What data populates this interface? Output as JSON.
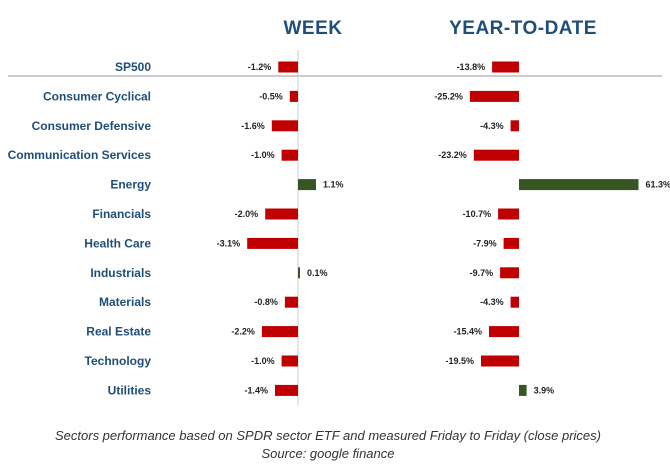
{
  "chart_data": {
    "type": "bar",
    "orientation": "horizontal",
    "categories": [
      "SP500",
      "Consumer Cyclical",
      "Consumer Defensive",
      "Communication Services",
      "Energy",
      "Financials",
      "Health Care",
      "Industrials",
      "Materials",
      "Real Estate",
      "Technology",
      "Utilities"
    ],
    "series": [
      {
        "name": "WEEK",
        "values": [
          -1.2,
          -0.5,
          -1.6,
          -1.0,
          1.1,
          -2.0,
          -3.1,
          0.1,
          -0.8,
          -2.2,
          -1.0,
          -1.4
        ],
        "labels": [
          "-1.2%",
          "-0.5%",
          "-1.6%",
          "-1.0%",
          "1.1%",
          "-2.0%",
          "-3.1%",
          "0.1%",
          "-0.8%",
          "-2.2%",
          "-1.0%",
          "-1.4%"
        ]
      },
      {
        "name": "YEAR-TO-DATE",
        "values": [
          -13.8,
          -25.2,
          -4.3,
          -23.2,
          61.3,
          -10.7,
          -7.9,
          -9.7,
          -4.3,
          -15.4,
          -19.5,
          3.9
        ],
        "labels": [
          "-13.8%",
          "-25.2%",
          "-4.3%",
          "-23.2%",
          "61.3%",
          "-10.7%",
          "-7.9%",
          "-9.7%",
          "-4.3%",
          "-15.4%",
          "-19.5%",
          "3.9%"
        ]
      }
    ],
    "colors": {
      "negative": "#c00000",
      "positive": "#375623"
    },
    "caption_line1": "Sectors performance based on SPDR sector ETF and measured Friday to Friday (close prices)",
    "caption_line2": "Source: google finance",
    "grid": false,
    "legend": "none"
  }
}
